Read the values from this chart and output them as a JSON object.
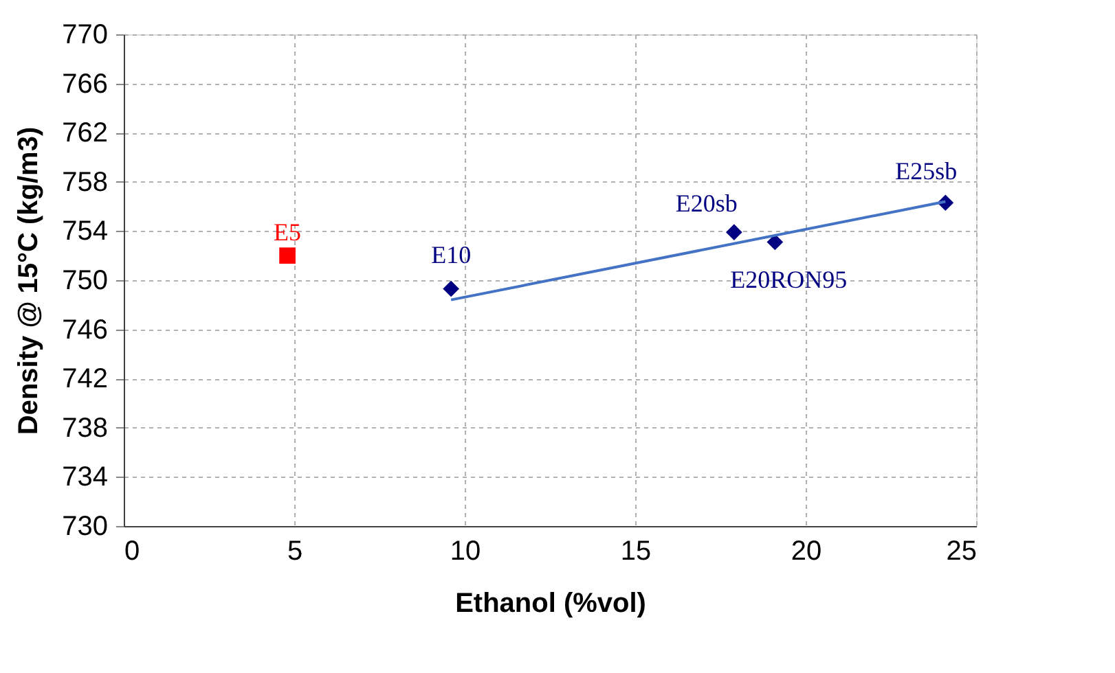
{
  "chart_data": {
    "type": "scatter",
    "xlabel": "Ethanol (%vol)",
    "ylabel": "Density @ 15°C (kg/m3)",
    "xlim": [
      0,
      25
    ],
    "xticks": [
      0,
      5,
      10,
      15,
      20,
      25
    ],
    "ylim": [
      730,
      770
    ],
    "yticks": [
      730,
      734,
      738,
      742,
      746,
      750,
      754,
      758,
      762,
      766,
      770
    ],
    "grid": true,
    "series": [
      {
        "name": "E5",
        "color": "#ff0000",
        "marker": "square",
        "x": [
          4.8
        ],
        "values": [
          752.0
        ]
      },
      {
        "name": "E10",
        "color": "#000080",
        "marker": "diamond",
        "x": [
          9.6
        ],
        "values": [
          749.3
        ]
      },
      {
        "name": "E20sb",
        "color": "#000080",
        "marker": "diamond",
        "x": [
          17.9
        ],
        "values": [
          753.9
        ]
      },
      {
        "name": "E20RON95",
        "color": "#000080",
        "marker": "diamond",
        "x": [
          19.1
        ],
        "values": [
          753.1
        ]
      },
      {
        "name": "E25sb",
        "color": "#000080",
        "marker": "diamond",
        "x": [
          24.1
        ],
        "values": [
          756.3
        ]
      },
      {
        "type": "line",
        "color": "#4472c4",
        "marker": "none",
        "line_style": "solid",
        "x": [
          9.6,
          24.1
        ],
        "values": [
          748.4,
          756.4
        ]
      }
    ]
  }
}
